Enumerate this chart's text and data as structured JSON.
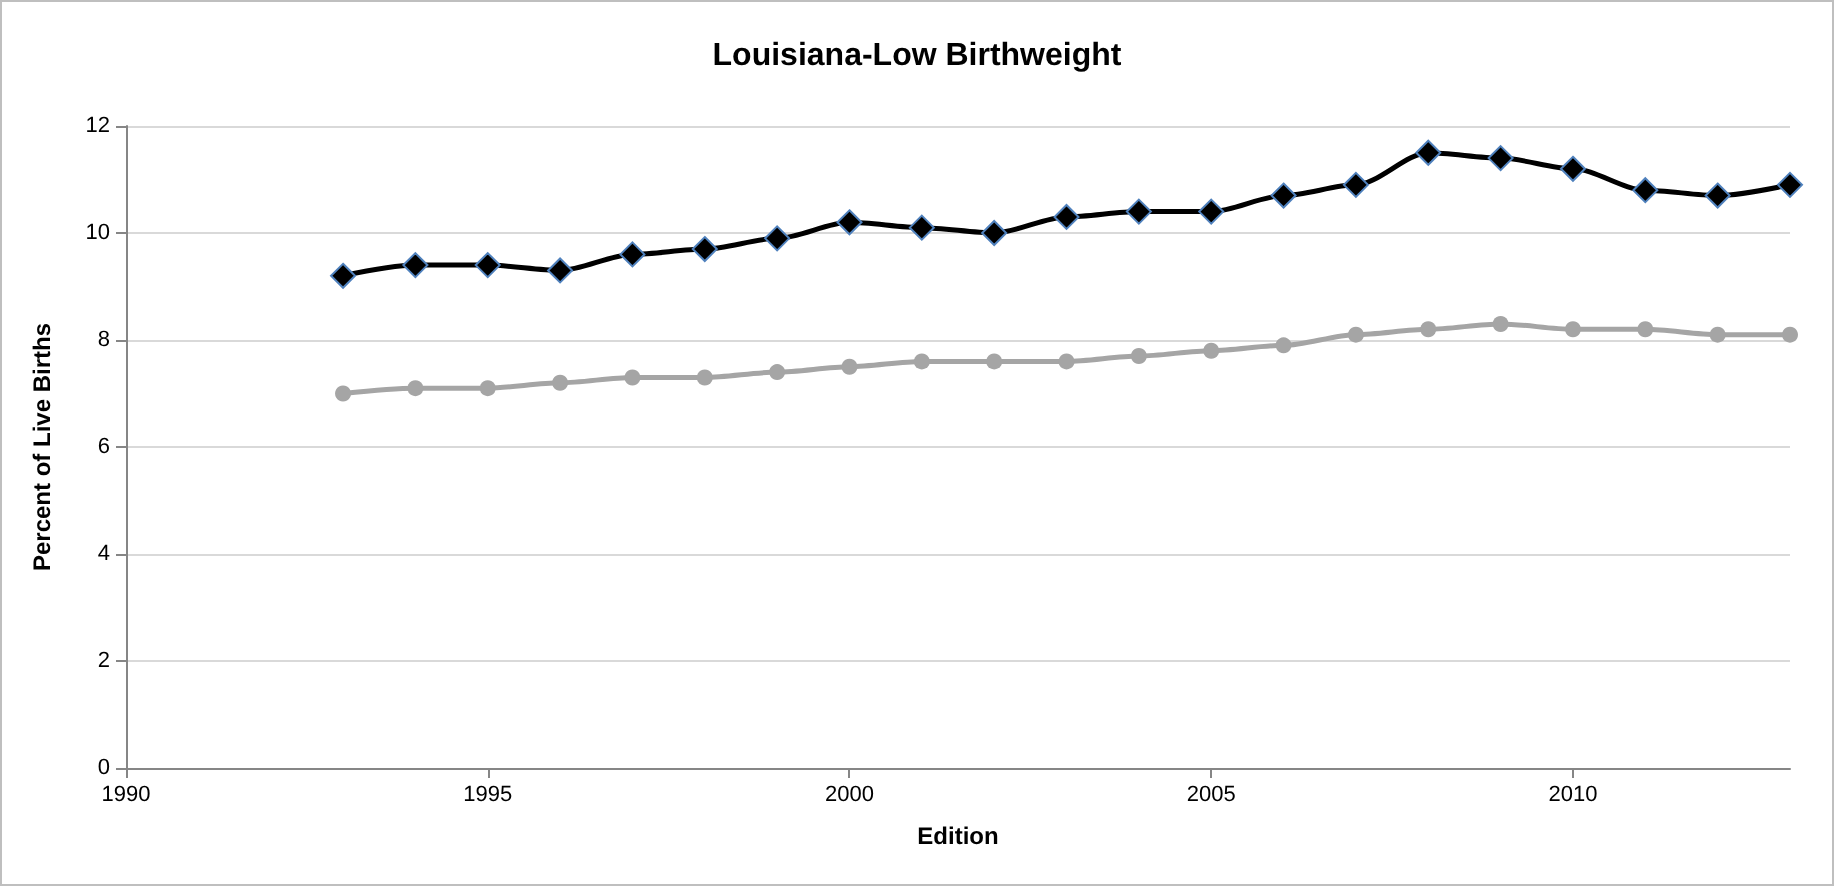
{
  "chart_data": {
    "type": "line",
    "title": "Louisiana-Low Birthweight",
    "xlabel": "Edition",
    "ylabel": "Percent of Live Births",
    "x": [
      1993,
      1994,
      1995,
      1996,
      1997,
      1998,
      1999,
      2000,
      2001,
      2002,
      2003,
      2004,
      2005,
      2006,
      2007,
      2008,
      2009,
      2010,
      2011,
      2012,
      2013
    ],
    "series": [
      {
        "color": "#000000",
        "marker": "diamond",
        "values": [
          9.2,
          9.4,
          9.4,
          9.3,
          9.6,
          9.7,
          9.9,
          10.2,
          10.1,
          10.0,
          10.3,
          10.4,
          10.4,
          10.7,
          10.9,
          11.5,
          11.4,
          11.2,
          10.8,
          10.7,
          10.9
        ]
      },
      {
        "color": "#a5a5a5",
        "marker": "circle",
        "values": [
          7.0,
          7.1,
          7.1,
          7.2,
          7.3,
          7.3,
          7.4,
          7.5,
          7.6,
          7.6,
          7.6,
          7.7,
          7.8,
          7.9,
          8.1,
          8.2,
          8.3,
          8.2,
          8.2,
          8.1,
          8.1
        ]
      }
    ],
    "xlim": [
      1990,
      2013
    ],
    "xticks": [
      1990,
      1995,
      2000,
      2005,
      2010
    ],
    "ylim": [
      0,
      12
    ],
    "yticks": [
      0,
      2,
      4,
      6,
      8,
      10,
      12
    ],
    "grid": "y"
  }
}
